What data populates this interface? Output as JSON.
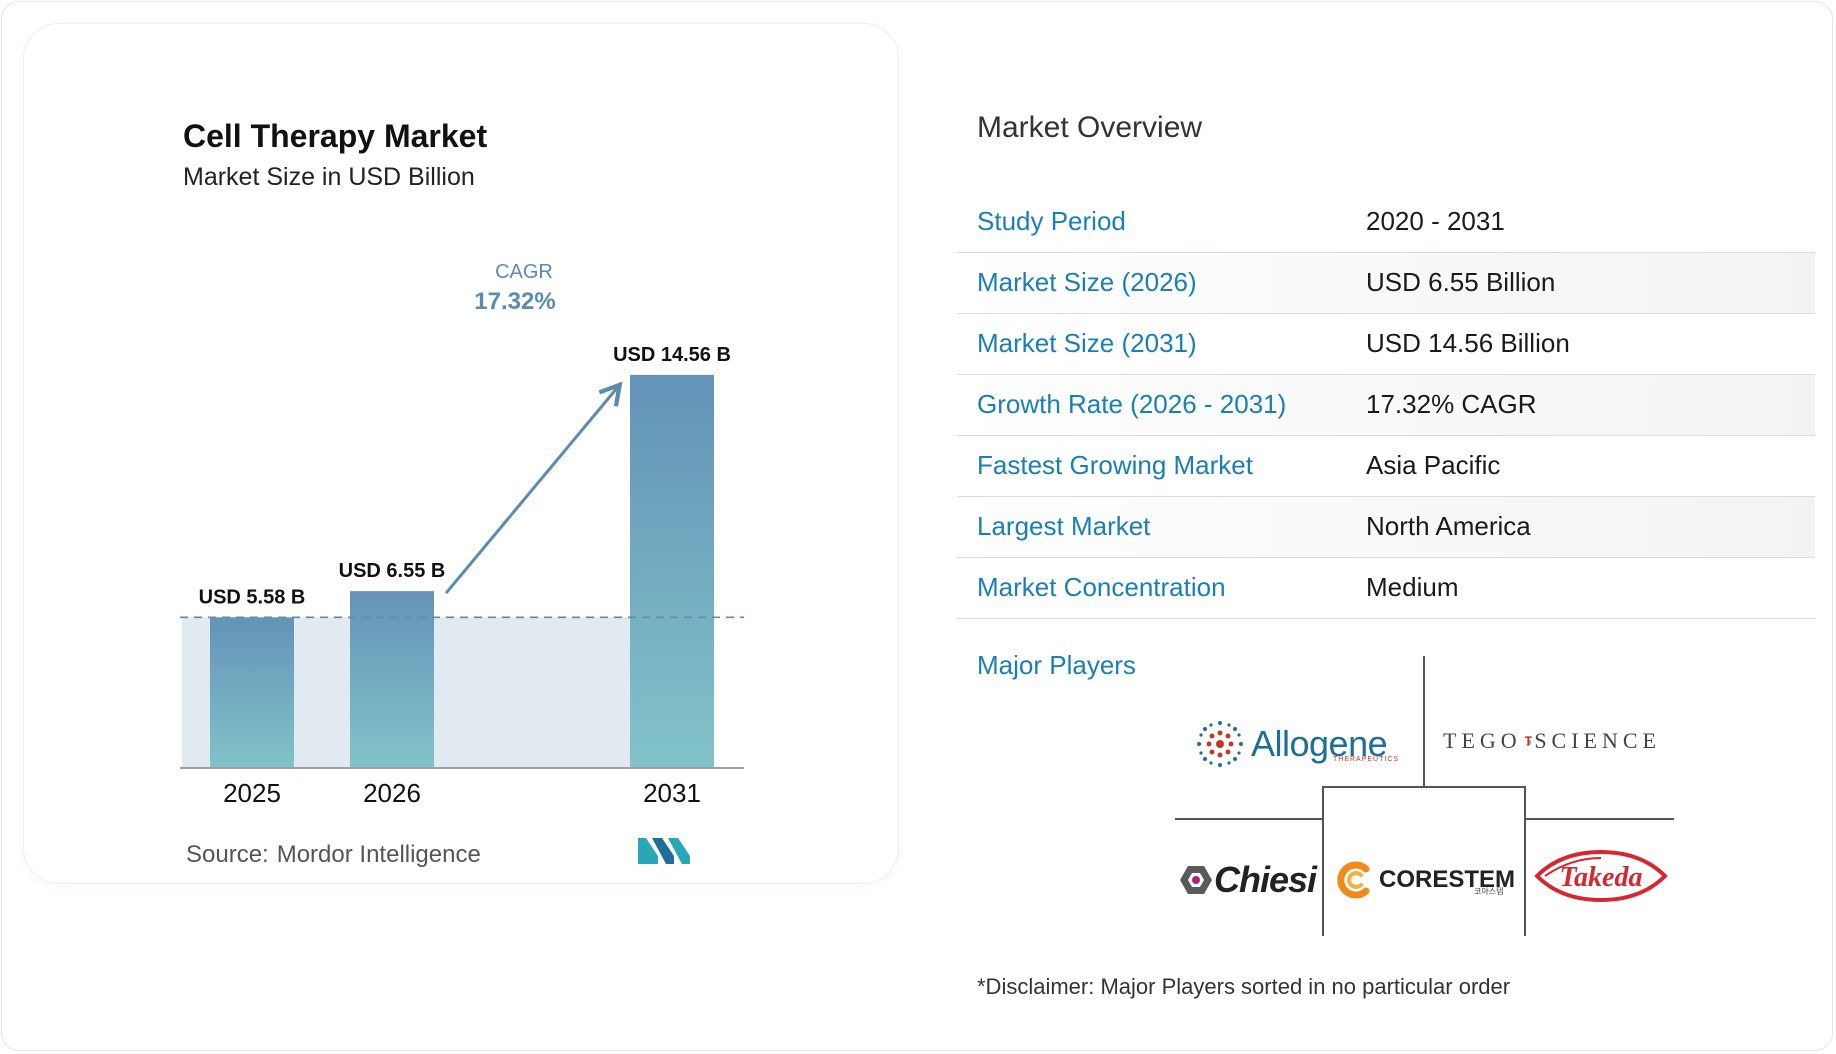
{
  "chart": {
    "title": "Cell Therapy Market",
    "subtitle": "Market Size in USD Billion",
    "cagr_label": "CAGR",
    "cagr_value": "17.32%",
    "source_label": "Source:",
    "source_value": "Mordor Intelligence",
    "logo_text": "MI"
  },
  "chart_data": {
    "type": "bar",
    "categories": [
      "2025",
      "2026",
      "2031"
    ],
    "values": [
      5.58,
      6.55,
      14.56
    ],
    "data_labels": [
      "USD 5.58 B",
      "USD 6.55 B",
      "USD 14.56 B"
    ],
    "title": "Cell Therapy Market",
    "subtitle": "Market Size in USD Billion",
    "xlabel": "",
    "ylabel": "",
    "ylim": [
      0,
      16
    ],
    "grid": false,
    "reference_line": 5.58,
    "annotation": "CAGR 17.32%",
    "colors": {
      "bar_top": "#6393b8",
      "bar_bottom": "#82c3c9",
      "shade": "#e1eaf1",
      "arrow": "#5b8bae",
      "cagr_text": "#5b8bae"
    }
  },
  "overview": {
    "title": "Market Overview",
    "rows": [
      {
        "label": "Study Period",
        "value": "2020 - 2031"
      },
      {
        "label": "Market Size (2026)",
        "value": "USD 6.55 Billion"
      },
      {
        "label": "Market Size (2031)",
        "value": "USD 14.56 Billion"
      },
      {
        "label": "Growth Rate (2026 - 2031)",
        "value": "17.32% CAGR"
      },
      {
        "label": "Fastest Growing Market",
        "value": "Asia Pacific"
      },
      {
        "label": "Largest Market",
        "value": "North America"
      },
      {
        "label": "Market Concentration",
        "value": "Medium"
      }
    ],
    "major_players_label": "Major Players",
    "players": {
      "allogene": {
        "name": "Allogene",
        "sub": "THERAPEUTICS"
      },
      "tego": {
        "left": "TEGO",
        "right": "SCIENCE"
      },
      "chiesi": {
        "name": "Chiesi"
      },
      "corestem": {
        "name": "CORESTEM",
        "sub": "코아스템"
      },
      "takeda": {
        "name": "Takeda"
      }
    },
    "disclaimer": "*Disclaimer: Major Players sorted in no particular order"
  },
  "colors": {
    "accent": "#1a7fb3"
  }
}
